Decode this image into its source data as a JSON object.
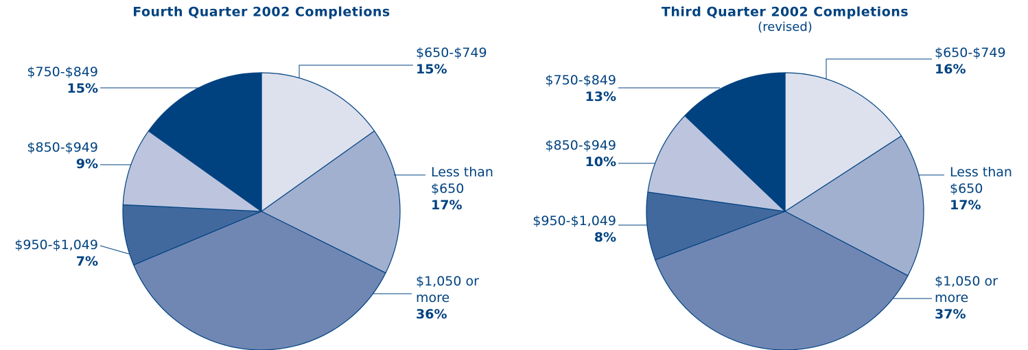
{
  "chart_data": [
    {
      "type": "pie",
      "title": "Fourth Quarter 2002 Completions",
      "categories": [
        "$650-$749",
        "Less than $650",
        "$1,050 or more",
        "$950-$1,049",
        "$850-$949",
        "$750-$849"
      ],
      "values": [
        15,
        17,
        36,
        7,
        9,
        15
      ],
      "value_labels": [
        "15%",
        "17%",
        "36%",
        "7%",
        "9%",
        "15%"
      ],
      "colors": [
        "#dde1ee",
        "#a2b0d0",
        "#7087b4",
        "#42699e",
        "#bcc4de",
        "#004280"
      ]
    },
    {
      "type": "pie",
      "title": "Third Quarter 2002 Completions",
      "subtitle": "(revised)",
      "categories": [
        "$650-$749",
        "Less than $650",
        "$1,050 or more",
        "$950-$1,049",
        "$850-$949",
        "$750-$849"
      ],
      "values": [
        16,
        17,
        37,
        8,
        10,
        13
      ],
      "value_labels": [
        "16%",
        "17%",
        "37%",
        "8%",
        "10%",
        "13%"
      ],
      "colors": [
        "#dde1ee",
        "#a2b0d0",
        "#7087b4",
        "#42699e",
        "#bcc4de",
        "#004280"
      ]
    }
  ]
}
